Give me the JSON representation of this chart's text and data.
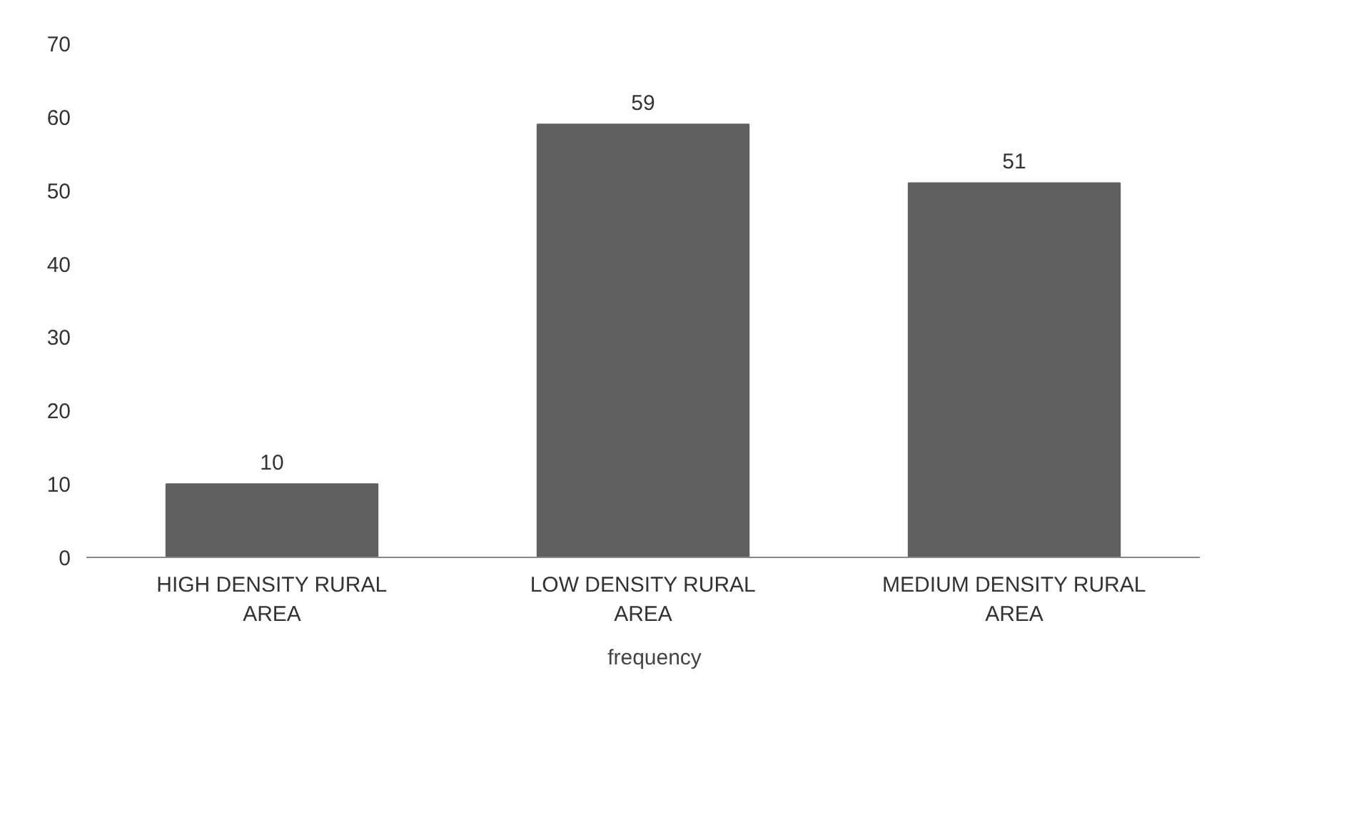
{
  "chart_data": {
    "type": "bar",
    "categories": [
      "HIGH DENSITY RURAL AREA",
      "LOW DENSITY RURAL AREA",
      "MEDIUM DENSITY RURAL AREA"
    ],
    "series": [
      {
        "name": "frequency",
        "color": "#606060",
        "values": [
          10,
          59,
          51
        ]
      }
    ],
    "ylim": [
      0,
      70
    ],
    "yticks": [
      0,
      10,
      20,
      30,
      40,
      50,
      60,
      70
    ],
    "data_labels": true,
    "grid": false,
    "legend": "bottom"
  }
}
